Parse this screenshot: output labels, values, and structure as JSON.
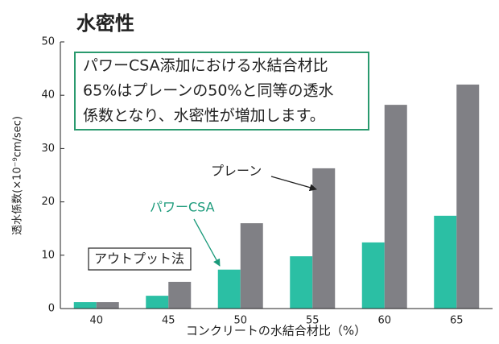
{
  "chart_data": {
    "type": "bar",
    "title": "水密性",
    "y_label": "透水係数(×10⁻⁹cm/sec)",
    "x_label": "コンクリートの水結合材比（%）",
    "categories": [
      "40",
      "45",
      "50",
      "55",
      "60",
      "65"
    ],
    "series": [
      {
        "name": "パワーCSA",
        "color": "#2bbfa4",
        "values": [
          1.2,
          2.4,
          7.3,
          9.8,
          12.4,
          17.4
        ]
      },
      {
        "name": "プレーン",
        "color": "#808085",
        "values": [
          1.2,
          5.0,
          16.0,
          26.3,
          38.2,
          42.0
        ]
      }
    ],
    "ylim": [
      0,
      50
    ],
    "yticks": [
      0,
      10,
      20,
      30,
      40,
      50
    ],
    "annotations": [
      "パワーCSA添加における水結合材比",
      "65%はプレーンの50%と同等の透水",
      "係数となり、水密性が増加します。",
      "アウトプット法"
    ]
  }
}
